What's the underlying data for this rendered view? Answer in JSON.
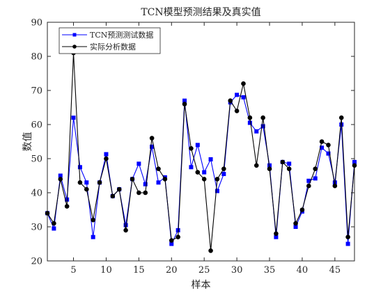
{
  "chart_data": {
    "type": "line",
    "title": "TCN模型预测结果及真实值",
    "xlabel": "样本",
    "ylabel": "数值",
    "xlim": [
      1,
      48
    ],
    "ylim": [
      20,
      90
    ],
    "xticks": [
      5,
      10,
      15,
      20,
      25,
      30,
      35,
      40,
      45
    ],
    "yticks": [
      20,
      30,
      40,
      50,
      60,
      70,
      80,
      90
    ],
    "grid": false,
    "legend_position": "top-left",
    "x": [
      1,
      2,
      3,
      4,
      5,
      6,
      7,
      8,
      9,
      10,
      11,
      12,
      13,
      14,
      15,
      16,
      17,
      18,
      19,
      20,
      21,
      22,
      23,
      24,
      25,
      26,
      27,
      28,
      29,
      30,
      31,
      32,
      33,
      34,
      35,
      36,
      37,
      38,
      39,
      40,
      41,
      42,
      43,
      44,
      45,
      46,
      47,
      48
    ],
    "series": [
      {
        "name": "TCN预测测试数据",
        "color": "#0000ff",
        "marker": "square",
        "values": [
          34,
          29.5,
          45,
          38,
          62,
          47.5,
          43,
          27,
          43,
          51.3,
          39,
          41,
          30.5,
          44,
          48.5,
          42.5,
          53.5,
          43,
          44.5,
          25,
          29,
          67,
          47.5,
          54,
          46,
          49.8,
          40.5,
          45.5,
          66.5,
          68.7,
          68,
          60.5,
          58,
          59.5,
          48,
          27,
          49,
          48.5,
          30,
          34.5,
          43.5,
          44.2,
          53.2,
          51.5,
          43,
          60,
          25,
          49
        ]
      },
      {
        "name": "实际分析数据",
        "color": "#000000",
        "marker": "circle",
        "values": [
          34,
          31,
          44,
          36,
          81,
          43,
          41,
          32,
          43,
          50,
          39,
          41,
          29,
          44,
          40,
          40,
          56,
          47,
          44,
          26,
          27,
          66,
          53,
          46,
          44,
          23,
          44,
          47,
          67,
          64,
          72,
          62,
          48,
          62,
          47,
          28,
          49,
          47,
          31,
          35,
          42,
          47,
          55,
          54,
          42,
          62,
          27,
          48
        ]
      }
    ]
  }
}
